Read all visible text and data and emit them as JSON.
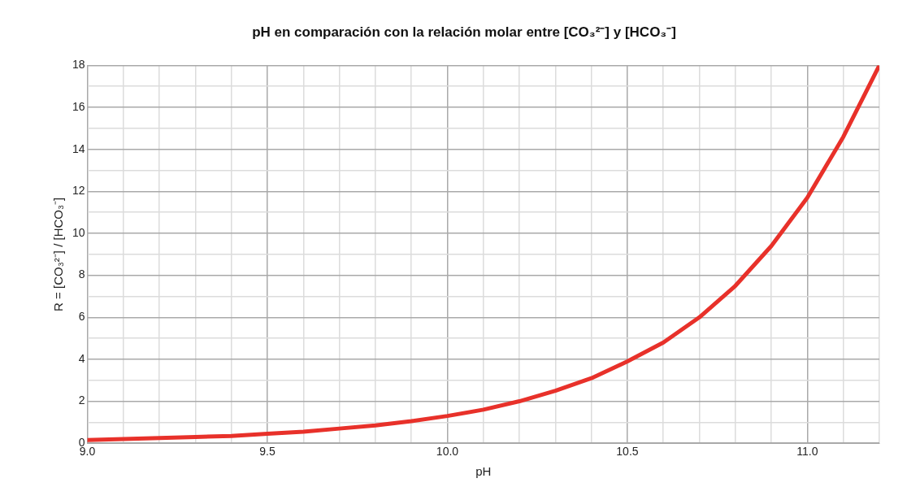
{
  "chart_data": {
    "type": "line",
    "title": "pH en comparación con la relación molar entre [CO₃²⁻] y [HCO₃⁻]",
    "xlabel": "pH",
    "ylabel": "R = [CO₃²⁻] / [HCO₃⁻]",
    "x": [
      9.0,
      9.1,
      9.2,
      9.3,
      9.4,
      9.5,
      9.6,
      9.7,
      9.8,
      9.9,
      10.0,
      10.1,
      10.2,
      10.3,
      10.4,
      10.5,
      10.6,
      10.7,
      10.8,
      10.9,
      11.0,
      11.1,
      11.2
    ],
    "series": [
      {
        "color": "#e8312a",
        "values": [
          0.15,
          0.2,
          0.25,
          0.3,
          0.35,
          0.45,
          0.55,
          0.7,
          0.85,
          1.05,
          1.3,
          1.6,
          2.0,
          2.5,
          3.1,
          3.9,
          4.8,
          6.0,
          7.5,
          9.4,
          11.7,
          14.6,
          18.0
        ]
      }
    ],
    "xlim": [
      9.0,
      11.2
    ],
    "xticks": [
      {
        "value": 9.0,
        "label": "9.0"
      },
      {
        "value": 9.1,
        "label": null
      },
      {
        "value": 9.2,
        "label": null
      },
      {
        "value": 9.3,
        "label": null
      },
      {
        "value": 9.4,
        "label": null
      },
      {
        "value": 9.5,
        "label": "9.5"
      },
      {
        "value": 9.6,
        "label": null
      },
      {
        "value": 9.7,
        "label": null
      },
      {
        "value": 9.8,
        "label": null
      },
      {
        "value": 9.9,
        "label": null
      },
      {
        "value": 10.0,
        "label": "10.0"
      },
      {
        "value": 10.1,
        "label": null
      },
      {
        "value": 10.2,
        "label": null
      },
      {
        "value": 10.3,
        "label": null
      },
      {
        "value": 10.4,
        "label": null
      },
      {
        "value": 10.5,
        "label": "10.5"
      },
      {
        "value": 10.6,
        "label": null
      },
      {
        "value": 10.7,
        "label": null
      },
      {
        "value": 10.8,
        "label": null
      },
      {
        "value": 10.9,
        "label": null
      },
      {
        "value": 11.0,
        "label": "11.0"
      },
      {
        "value": 11.1,
        "label": null
      },
      {
        "value": 11.2,
        "label": null
      }
    ],
    "ylim": [
      0,
      18
    ],
    "yticks": [
      0,
      {
        "value": 1,
        "label": null
      },
      2,
      {
        "value": 3,
        "label": null
      },
      4,
      {
        "value": 5,
        "label": null
      },
      6,
      {
        "value": 7,
        "label": null
      },
      8,
      {
        "value": 9,
        "label": null
      },
      10,
      {
        "value": 11,
        "label": null
      },
      12,
      {
        "value": 13,
        "label": null
      },
      14,
      {
        "value": 15,
        "label": null
      },
      16,
      {
        "value": 17,
        "label": null
      },
      18
    ],
    "grid": true,
    "marker": "none",
    "line_style": "solid"
  }
}
